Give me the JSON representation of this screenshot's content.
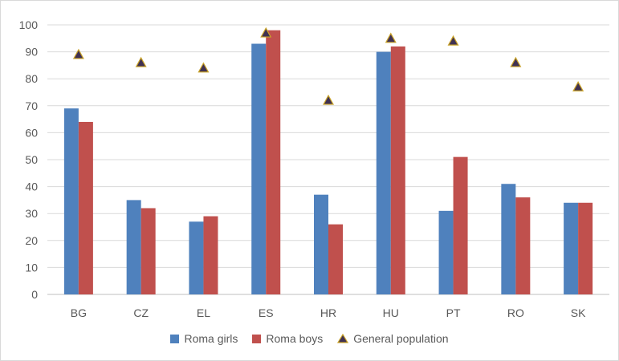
{
  "chart_data": {
    "type": "bar",
    "categories": [
      "BG",
      "CZ",
      "EL",
      "ES",
      "HR",
      "HU",
      "PT",
      "RO",
      "SK"
    ],
    "series": [
      {
        "name": "Roma girls",
        "kind": "bar",
        "color": "#4f81bd",
        "values": [
          69,
          35,
          27,
          93,
          37,
          90,
          31,
          41,
          34
        ]
      },
      {
        "name": "Roma boys",
        "kind": "bar",
        "color": "#c0504d",
        "values": [
          64,
          32,
          29,
          98,
          26,
          92,
          51,
          36,
          34
        ]
      },
      {
        "name": "General population",
        "kind": "marker",
        "marker": "triangle",
        "color": "#403152",
        "edge_color": "#c9a227",
        "values": [
          89,
          86,
          84,
          97,
          72,
          95,
          94,
          86,
          77
        ]
      }
    ],
    "yticks": [
      "0",
      "10",
      "20",
      "30",
      "40",
      "50",
      "60",
      "70",
      "80",
      "90",
      "100"
    ],
    "ylim": [
      0,
      100
    ],
    "grid": true,
    "legend_position": "bottom"
  }
}
